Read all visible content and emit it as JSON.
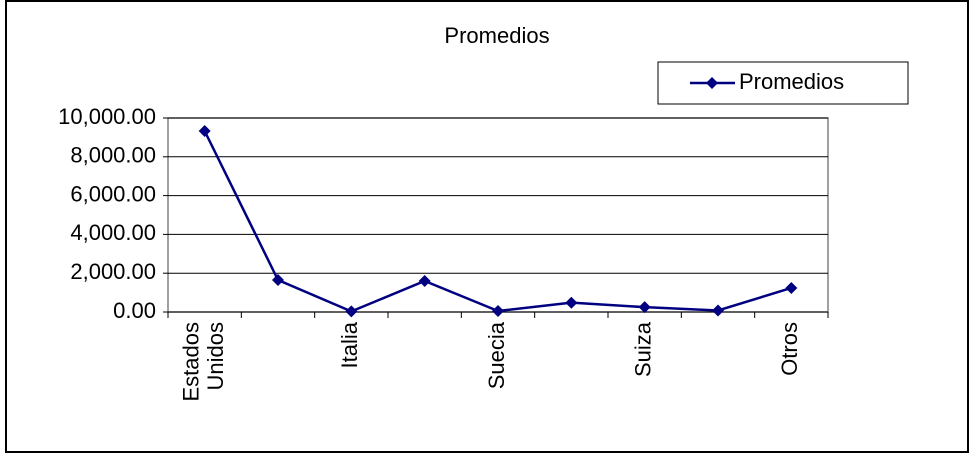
{
  "chart_data": {
    "type": "line",
    "title": "Promedios",
    "categories": [
      "Estados Unidos",
      null,
      "Italia",
      null,
      "Suecia",
      null,
      "Suiza",
      null,
      "Otros"
    ],
    "series": [
      {
        "name": "Promedios",
        "color": "#000080",
        "values": [
          9330,
          1650,
          30,
          1600,
          50,
          480,
          250,
          80,
          1240
        ]
      }
    ],
    "ylim": [
      0,
      10000
    ],
    "yticks": [
      {
        "value": 0,
        "label": "0.00"
      },
      {
        "value": 2000,
        "label": "2,000.00"
      },
      {
        "value": 4000,
        "label": "4,000.00"
      },
      {
        "value": 6000,
        "label": "6,000.00"
      },
      {
        "value": 8000,
        "label": "8,000.00"
      },
      {
        "value": 10000,
        "label": "10,000.00"
      }
    ],
    "grid": true,
    "legend": "top-right"
  }
}
